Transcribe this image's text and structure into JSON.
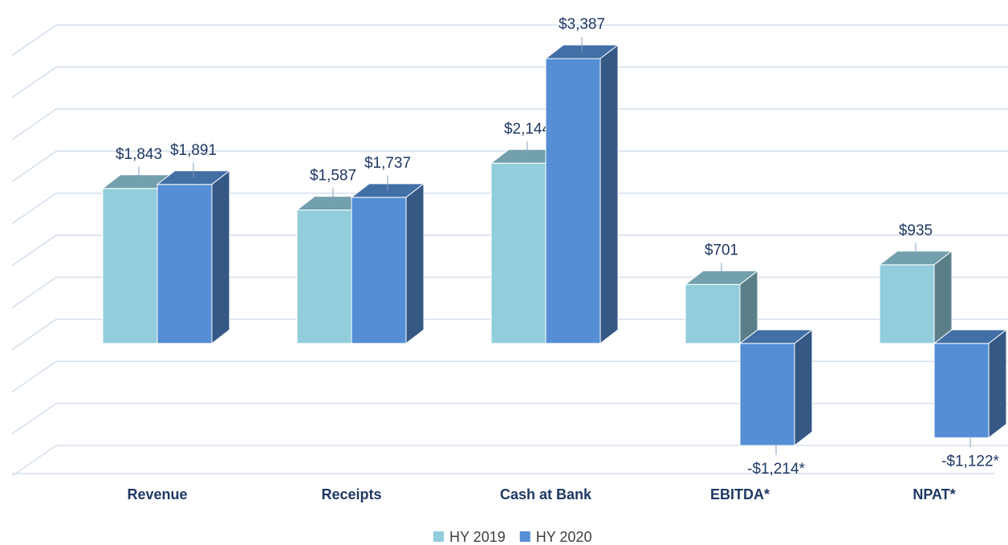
{
  "chart_data": {
    "type": "bar3d",
    "categories": [
      "Revenue",
      "Receipts",
      "Cash at Bank",
      "EBITDA*",
      "NPAT*"
    ],
    "series": [
      {
        "name": "HY 2019",
        "color": "#92cddc",
        "values": [
          1843,
          1587,
          2144,
          701,
          935
        ],
        "value_labels": [
          "$1,843",
          "$1,587",
          "$2,144",
          "$701",
          "$935"
        ]
      },
      {
        "name": "HY 2020",
        "color": "#558ed5",
        "values": [
          1891,
          1737,
          3387,
          -1214,
          -1122
        ],
        "value_labels": [
          "$1,891",
          "$1,737",
          "$3,387",
          "-$1,214*",
          "-$1,122*"
        ]
      }
    ],
    "ylim": [
      -1500,
      3750
    ],
    "yticks": [
      -1500,
      -1000,
      -500,
      0,
      500,
      1000,
      1500,
      2000,
      2500,
      3000,
      3500
    ],
    "grid": true,
    "legend": "bottom"
  }
}
